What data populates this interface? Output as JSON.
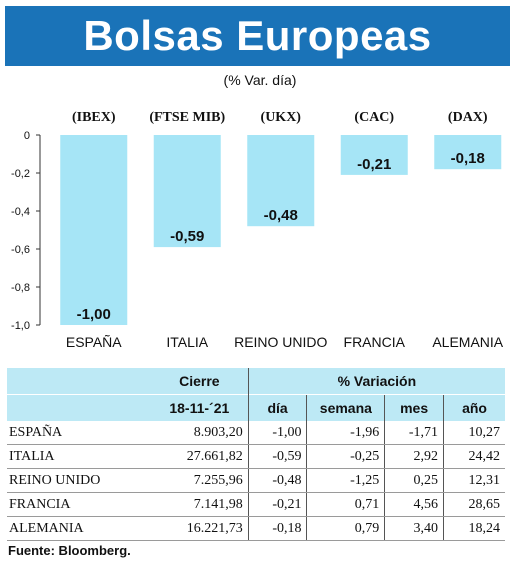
{
  "header": {
    "title": "Bolsas Europeas",
    "subtitle": "(% Var. día)"
  },
  "chart_data": {
    "type": "bar",
    "index_labels": [
      "(IBEX)",
      "(FTSE MIB)",
      "(UKX)",
      "(CAC)",
      "(DAX)"
    ],
    "categories": [
      "ESPAÑA",
      "ITALIA",
      "REINO UNIDO",
      "FRANCIA",
      "ALEMANIA"
    ],
    "values": [
      -1.0,
      -0.59,
      -0.48,
      -0.21,
      -0.18
    ],
    "value_labels": [
      "-1,00",
      "-0,59",
      "-0,48",
      "-0,21",
      "-0,18"
    ],
    "ylim": [
      -1.0,
      0
    ],
    "yticks": [
      0,
      -0.2,
      -0.4,
      -0.6,
      -0.8,
      -1.0
    ],
    "ytick_labels": [
      "0",
      "-0,2",
      "-0,4",
      "-0,6",
      "-0,8",
      "-1,0"
    ],
    "bar_color": "#a6e5f6"
  },
  "table": {
    "group_headers": {
      "close": "Cierre",
      "variation": "% Variación"
    },
    "sub_headers": {
      "date": "18-11-´21",
      "day": "día",
      "week": "semana",
      "month": "mes",
      "year": "año"
    },
    "rows": [
      {
        "name": "ESPAÑA",
        "close": "8.903,20",
        "day": "-1,00",
        "week": "-1,96",
        "month": "-1,71",
        "year": "10,27"
      },
      {
        "name": "ITALIA",
        "close": "27.661,82",
        "day": "-0,59",
        "week": "-0,25",
        "month": "2,92",
        "year": "24,42"
      },
      {
        "name": "REINO UNIDO",
        "close": "7.255,96",
        "day": "-0,48",
        "week": "-1,25",
        "month": "0,25",
        "year": "12,31"
      },
      {
        "name": "FRANCIA",
        "close": "7.141,98",
        "day": "-0,21",
        "week": "0,71",
        "month": "4,56",
        "year": "28,65"
      },
      {
        "name": "ALEMANIA",
        "close": "16.221,73",
        "day": "-0,18",
        "week": "0,79",
        "month": "3,40",
        "year": "18,24"
      }
    ]
  },
  "footer": {
    "source": "Fuente: Bloomberg."
  }
}
